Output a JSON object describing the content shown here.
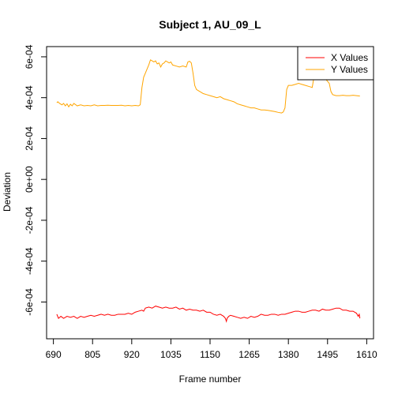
{
  "chart_data": {
    "type": "line",
    "title": "Subject 1, AU_09_L",
    "xlabel": "Frame number",
    "ylabel": "Deviation",
    "xlim": [
      670,
      1630
    ],
    "ylim": [
      -0.00078,
      0.00065
    ],
    "x_ticks": [
      690,
      805,
      920,
      1035,
      1150,
      1265,
      1380,
      1495,
      1610
    ],
    "y_ticks": [
      {
        "value": -0.0006,
        "label": "-6e-04"
      },
      {
        "value": -0.0004,
        "label": "-4e-04"
      },
      {
        "value": -0.0002,
        "label": "-2e-04"
      },
      {
        "value": 0,
        "label": "0e+00"
      },
      {
        "value": 0.0002,
        "label": "2e-04"
      },
      {
        "value": 0.0004,
        "label": "4e-04"
      },
      {
        "value": 0.0006,
        "label": "6e-04"
      }
    ],
    "grid": false,
    "legend_position": "top-right",
    "series": [
      {
        "name": "X Values",
        "color": "#ff0000",
        "points": [
          [
            700,
            -0.00066
          ],
          [
            705,
            -0.00068
          ],
          [
            712,
            -0.00067
          ],
          [
            720,
            -0.00068
          ],
          [
            730,
            -0.00067
          ],
          [
            740,
            -0.000675
          ],
          [
            750,
            -0.00067
          ],
          [
            760,
            -0.00068
          ],
          [
            770,
            -0.00067
          ],
          [
            780,
            -0.000675
          ],
          [
            790,
            -0.00067
          ],
          [
            800,
            -0.000665
          ],
          [
            810,
            -0.00067
          ],
          [
            820,
            -0.000665
          ],
          [
            830,
            -0.00066
          ],
          [
            840,
            -0.000665
          ],
          [
            850,
            -0.00066
          ],
          [
            860,
            -0.000665
          ],
          [
            870,
            -0.000665
          ],
          [
            880,
            -0.00066
          ],
          [
            890,
            -0.00066
          ],
          [
            900,
            -0.00066
          ],
          [
            910,
            -0.000655
          ],
          [
            920,
            -0.00066
          ],
          [
            930,
            -0.00065
          ],
          [
            940,
            -0.000645
          ],
          [
            950,
            -0.00064
          ],
          [
            955,
            -0.000645
          ],
          [
            960,
            -0.00063
          ],
          [
            970,
            -0.000625
          ],
          [
            980,
            -0.00063
          ],
          [
            990,
            -0.00062
          ],
          [
            1000,
            -0.000625
          ],
          [
            1010,
            -0.00063
          ],
          [
            1020,
            -0.000625
          ],
          [
            1030,
            -0.00063
          ],
          [
            1040,
            -0.00063
          ],
          [
            1050,
            -0.000625
          ],
          [
            1060,
            -0.000635
          ],
          [
            1070,
            -0.00063
          ],
          [
            1080,
            -0.00064
          ],
          [
            1090,
            -0.000635
          ],
          [
            1100,
            -0.00064
          ],
          [
            1110,
            -0.00064
          ],
          [
            1120,
            -0.000645
          ],
          [
            1130,
            -0.00064
          ],
          [
            1140,
            -0.00065
          ],
          [
            1150,
            -0.00065
          ],
          [
            1160,
            -0.00066
          ],
          [
            1170,
            -0.000665
          ],
          [
            1180,
            -0.00066
          ],
          [
            1190,
            -0.00067
          ],
          [
            1195,
            -0.00068
          ],
          [
            1198,
            -0.000695
          ],
          [
            1200,
            -0.00068
          ],
          [
            1205,
            -0.00067
          ],
          [
            1210,
            -0.000665
          ],
          [
            1220,
            -0.00067
          ],
          [
            1230,
            -0.000675
          ],
          [
            1240,
            -0.00068
          ],
          [
            1250,
            -0.000675
          ],
          [
            1260,
            -0.00068
          ],
          [
            1270,
            -0.00067
          ],
          [
            1280,
            -0.000675
          ],
          [
            1290,
            -0.00067
          ],
          [
            1300,
            -0.00066
          ],
          [
            1310,
            -0.000665
          ],
          [
            1320,
            -0.000665
          ],
          [
            1330,
            -0.00066
          ],
          [
            1340,
            -0.00066
          ],
          [
            1350,
            -0.000665
          ],
          [
            1360,
            -0.00066
          ],
          [
            1370,
            -0.00066
          ],
          [
            1380,
            -0.000655
          ],
          [
            1390,
            -0.00065
          ],
          [
            1400,
            -0.000645
          ],
          [
            1410,
            -0.000645
          ],
          [
            1420,
            -0.00065
          ],
          [
            1430,
            -0.00065
          ],
          [
            1440,
            -0.000645
          ],
          [
            1450,
            -0.00064
          ],
          [
            1460,
            -0.00064
          ],
          [
            1470,
            -0.000645
          ],
          [
            1480,
            -0.000635
          ],
          [
            1490,
            -0.00064
          ],
          [
            1500,
            -0.00064
          ],
          [
            1510,
            -0.000635
          ],
          [
            1520,
            -0.00063
          ],
          [
            1530,
            -0.00063
          ],
          [
            1540,
            -0.00064
          ],
          [
            1550,
            -0.00064
          ],
          [
            1560,
            -0.000645
          ],
          [
            1570,
            -0.000645
          ],
          [
            1580,
            -0.000655
          ],
          [
            1585,
            -0.00067
          ],
          [
            1588,
            -0.00066
          ],
          [
            1590,
            -0.00068
          ]
        ]
      },
      {
        "name": "Y Values",
        "color": "#ffa500",
        "points": [
          [
            700,
            0.000375
          ],
          [
            703,
            0.00038
          ],
          [
            706,
            0.000375
          ],
          [
            710,
            0.00037
          ],
          [
            715,
            0.000365
          ],
          [
            720,
            0.000372
          ],
          [
            725,
            0.00036
          ],
          [
            730,
            0.00037
          ],
          [
            735,
            0.000355
          ],
          [
            740,
            0.000368
          ],
          [
            745,
            0.00036
          ],
          [
            750,
            0.000372
          ],
          [
            760,
            0.00036
          ],
          [
            770,
            0.000365
          ],
          [
            780,
            0.00036
          ],
          [
            790,
            0.000362
          ],
          [
            800,
            0.00036
          ],
          [
            810,
            0.000365
          ],
          [
            820,
            0.00036
          ],
          [
            830,
            0.000362
          ],
          [
            840,
            0.000362
          ],
          [
            850,
            0.000363
          ],
          [
            860,
            0.000362
          ],
          [
            870,
            0.000362
          ],
          [
            880,
            0.000362
          ],
          [
            890,
            0.000363
          ],
          [
            900,
            0.00036
          ],
          [
            910,
            0.000362
          ],
          [
            920,
            0.00036
          ],
          [
            930,
            0.000362
          ],
          [
            940,
            0.00036
          ],
          [
            945,
            0.000365
          ],
          [
            950,
            0.00045
          ],
          [
            955,
            0.0005
          ],
          [
            960,
            0.00052
          ],
          [
            965,
            0.00054
          ],
          [
            970,
            0.00056
          ],
          [
            975,
            0.000585
          ],
          [
            980,
            0.00058
          ],
          [
            985,
            0.000575
          ],
          [
            990,
            0.00058
          ],
          [
            995,
            0.000565
          ],
          [
            1000,
            0.00057
          ],
          [
            1005,
            0.00055
          ],
          [
            1010,
            0.000565
          ],
          [
            1015,
            0.00057
          ],
          [
            1020,
            0.00058
          ],
          [
            1025,
            0.000575
          ],
          [
            1030,
            0.00057
          ],
          [
            1035,
            0.000575
          ],
          [
            1040,
            0.00056
          ],
          [
            1050,
            0.000555
          ],
          [
            1060,
            0.00055
          ],
          [
            1070,
            0.000555
          ],
          [
            1080,
            0.00055
          ],
          [
            1085,
            0.000575
          ],
          [
            1090,
            0.000578
          ],
          [
            1095,
            0.00057
          ],
          [
            1100,
            0.00052
          ],
          [
            1105,
            0.00046
          ],
          [
            1110,
            0.00044
          ],
          [
            1120,
            0.00043
          ],
          [
            1130,
            0.00042
          ],
          [
            1140,
            0.000415
          ],
          [
            1150,
            0.00041
          ],
          [
            1160,
            0.000405
          ],
          [
            1170,
            0.0004
          ],
          [
            1180,
            0.000405
          ],
          [
            1190,
            0.000395
          ],
          [
            1200,
            0.00039
          ],
          [
            1210,
            0.000385
          ],
          [
            1220,
            0.00038
          ],
          [
            1230,
            0.00037
          ],
          [
            1240,
            0.000365
          ],
          [
            1250,
            0.00036
          ],
          [
            1260,
            0.000355
          ],
          [
            1270,
            0.00035
          ],
          [
            1280,
            0.00035
          ],
          [
            1290,
            0.000345
          ],
          [
            1300,
            0.00034
          ],
          [
            1310,
            0.00034
          ],
          [
            1320,
            0.000338
          ],
          [
            1330,
            0.000335
          ],
          [
            1340,
            0.000332
          ],
          [
            1350,
            0.000328
          ],
          [
            1360,
            0.000325
          ],
          [
            1365,
            0.00033
          ],
          [
            1370,
            0.00035
          ],
          [
            1375,
            0.00044
          ],
          [
            1380,
            0.00046
          ],
          [
            1390,
            0.00046
          ],
          [
            1400,
            0.000465
          ],
          [
            1410,
            0.00047
          ],
          [
            1420,
            0.000465
          ],
          [
            1430,
            0.00046
          ],
          [
            1440,
            0.000455
          ],
          [
            1450,
            0.00045
          ],
          [
            1455,
            0.0005
          ],
          [
            1460,
            0.00052
          ],
          [
            1465,
            0.000515
          ],
          [
            1470,
            0.000505
          ],
          [
            1480,
            0.0005
          ],
          [
            1490,
            0.00049
          ],
          [
            1500,
            0.00047
          ],
          [
            1505,
            0.00043
          ],
          [
            1510,
            0.000415
          ],
          [
            1520,
            0.00041
          ],
          [
            1530,
            0.00041
          ],
          [
            1540,
            0.000412
          ],
          [
            1550,
            0.00041
          ],
          [
            1560,
            0.00041
          ],
          [
            1570,
            0.000412
          ],
          [
            1580,
            0.00041
          ],
          [
            1590,
            0.000408
          ]
        ]
      }
    ]
  }
}
